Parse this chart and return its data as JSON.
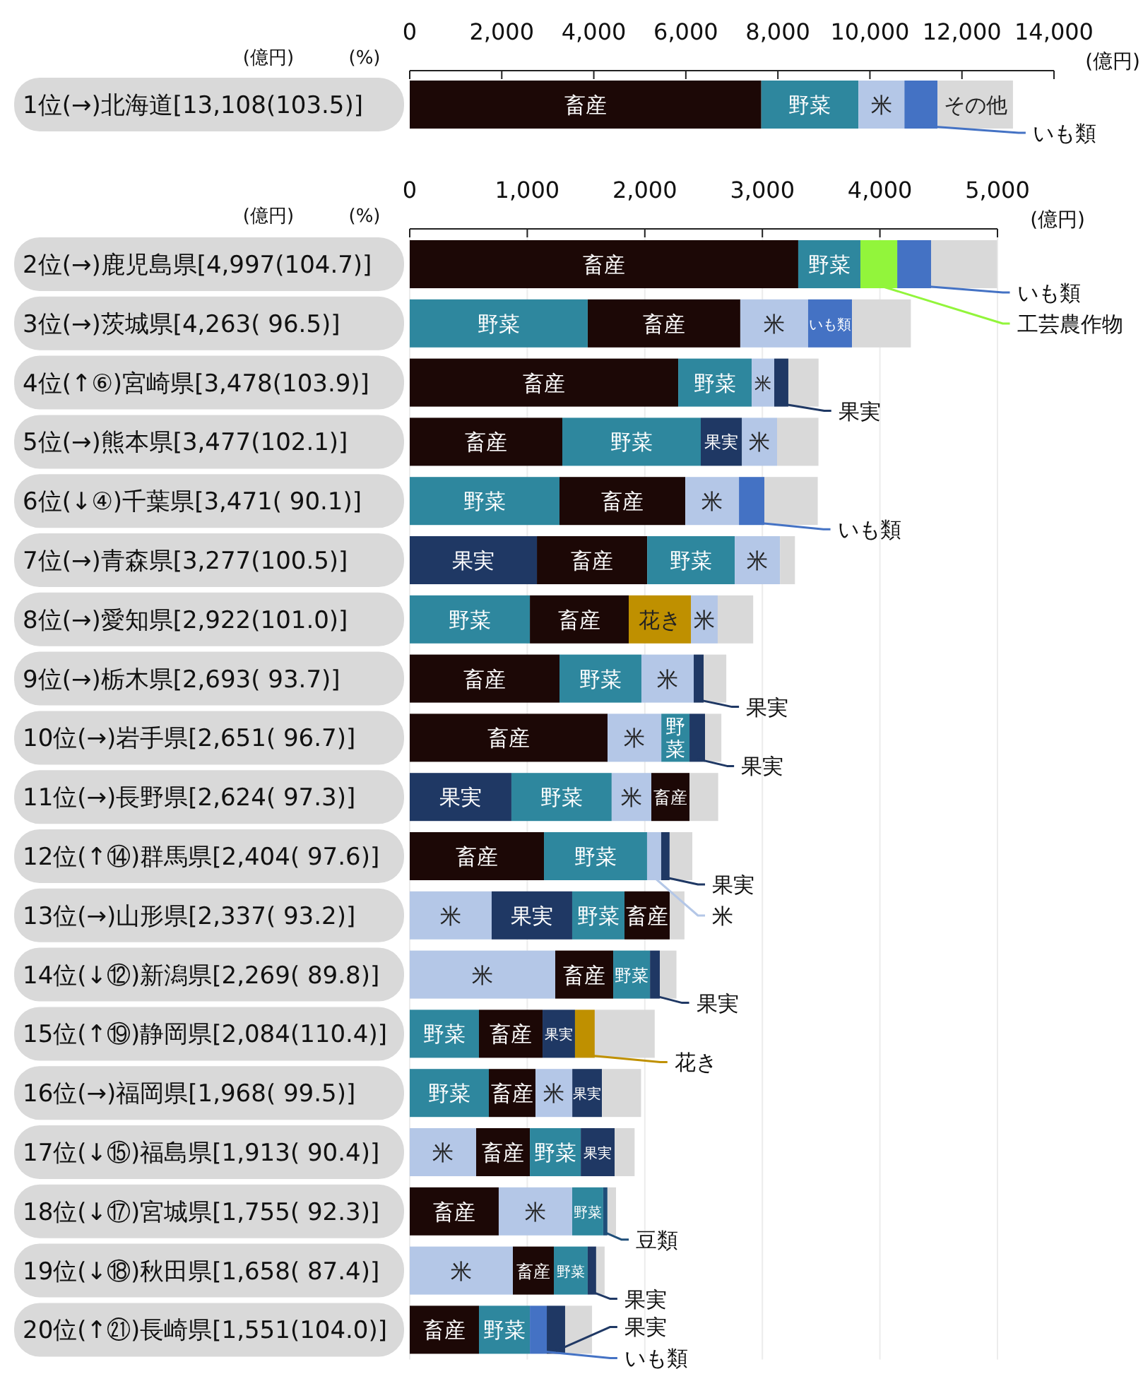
{
  "chart_data": [
    {
      "type": "bar",
      "orientation": "horizontal",
      "xlabel": "(億円)",
      "annotations": [
        "(億円)",
        "(%)"
      ],
      "grid": false,
      "legend": "right",
      "categories": [
        "1位(→)北海道[13,108(103.5)]"
      ],
      "xlim": [
        0,
        14000
      ],
      "xticks": [
        0,
        {
          "value": 2000,
          "label": "2,000"
        },
        {
          "value": 4000,
          "label": "4,000"
        },
        {
          "value": 6000,
          "label": "6,000"
        },
        {
          "value": 8000,
          "label": "8,000"
        },
        {
          "value": 10000,
          "label": "10,000"
        },
        {
          "value": 12000,
          "label": "12,000"
        },
        {
          "value": 14000,
          "label": "14,000"
        }
      ],
      "series": [
        {
          "name": "畜産",
          "color": "#1c0806",
          "values": [
            7640
          ],
          "base": [
            0
          ]
        },
        {
          "name": "野菜",
          "color": "#2e879e",
          "values": [
            2110
          ],
          "base": [
            7640
          ]
        },
        {
          "name": "米",
          "color": "#b4c7e7",
          "values": [
            1000
          ],
          "base": [
            9750
          ]
        },
        {
          "name": "いも類",
          "color": "#4472c4",
          "values": [
            720
          ],
          "base": [
            10750
          ]
        },
        {
          "name": "その他",
          "color": "#d9d9d9",
          "values": [
            1638
          ],
          "base": [
            11470
          ]
        }
      ]
    },
    {
      "type": "bar",
      "orientation": "horizontal",
      "xlabel": "(億円)",
      "annotations": [
        "(億円)",
        "(%)"
      ],
      "grid": "x",
      "legend": "right",
      "categories": [
        "2位(→)鹿児島県[4,997(104.7)]",
        "3位(→)茨城県[4,263( 96.5)]",
        "4位(↑⑥)宮崎県[3,478(103.9)]",
        "5位(→)熊本県[3,477(102.1)]",
        "6位(↓④)千葉県[3,471( 90.1)]",
        "7位(→)青森県[3,277(100.5)]",
        "8位(→)愛知県[2,922(101.0)]",
        "9位(→)栃木県[2,693( 93.7)]",
        "10位(→)岩手県[2,651( 96.7)]",
        "11位(→)長野県[2,624( 97.3)]",
        "12位(↑⑭)群馬県[2,404( 97.6)]",
        "13位(→)山形県[2,337( 93.2)]",
        "14位(↓⑫)新潟県[2,269( 89.8)]",
        "15位(↑⑲)静岡県[2,084(110.4)]",
        "16位(→)福岡県[1,968( 99.5)]",
        "17位(↓⑮)福島県[1,913( 90.4)]",
        "18位(↓⑰)宮城県[1,755( 92.3)]",
        "19位(↓⑱)秋田県[1,658( 87.4)]",
        "20位(↑㉑)長崎県[1,551(104.0)]"
      ],
      "xlim": [
        0,
        5000
      ],
      "xticks": [
        0,
        {
          "value": 1000,
          "label": "1,000"
        },
        {
          "value": 2000,
          "label": "2,000"
        },
        {
          "value": 3000,
          "label": "3,000"
        },
        {
          "value": 4000,
          "label": "4,000"
        },
        {
          "value": 5000,
          "label": "5,000"
        }
      ],
      "series": [
        {
          "name": "畜産",
          "color": "#1c0806",
          "values": [
            3305,
            1298,
            2284,
            1298,
            1070,
            938,
            841,
            1274,
            1683,
            325,
            1142,
            385,
            493,
            541,
            397,
            457,
            757,
            349,
            589
          ],
          "base": [
            0,
            1514,
            0,
            0,
            1274,
            1082,
            1022,
            0,
            0,
            2055,
            0,
            1827,
            1238,
            589,
            673,
            565,
            0,
            877,
            0
          ]
        },
        {
          "name": "野菜",
          "color": "#2e879e",
          "values": [
            529,
            1514,
            625,
            1178,
            1274,
            745,
            1022,
            697,
            240,
            853,
            877,
            445,
            313,
            589,
            673,
            433,
            264,
            288,
            433
          ],
          "base": [
            3305,
            0,
            2284,
            1298,
            0,
            2020,
            0,
            1274,
            2140,
            865,
            1142,
            1382,
            1731,
            0,
            0,
            1022,
            1382,
            1226,
            589
          ]
        },
        {
          "name": "米",
          "color": "#b4c7e7",
          "values": [
            null,
            577,
            192,
            300,
            457,
            385,
            228,
            445,
            457,
            337,
            120,
            697,
            1238,
            null,
            313,
            565,
            625,
            877,
            null
          ],
          "base": [
            null,
            2812,
            2909,
            2825,
            2344,
            2765,
            2392,
            1971,
            1683,
            1718,
            2019,
            0,
            0,
            null,
            1070,
            0,
            757,
            0,
            null
          ]
        },
        {
          "name": "果実",
          "color": "#1f3864",
          "values": [
            null,
            null,
            120,
            349,
            null,
            1082,
            null,
            84,
            132,
            865,
            72,
            685,
            84,
            276,
            252,
            288,
            null,
            72,
            156
          ],
          "base": [
            null,
            null,
            3101,
            2476,
            null,
            0,
            null,
            2416,
            2380,
            0,
            2139,
            697,
            2044,
            1130,
            1383,
            1455,
            null,
            1514,
            1166
          ]
        },
        {
          "name": "いも類",
          "color": "#4472c4",
          "values": [
            288,
            373,
            null,
            null,
            216,
            null,
            null,
            null,
            null,
            null,
            null,
            null,
            null,
            null,
            null,
            null,
            null,
            null,
            144
          ],
          "base": [
            4147,
            3389,
            null,
            null,
            2801,
            null,
            null,
            null,
            null,
            null,
            null,
            null,
            null,
            null,
            null,
            null,
            null,
            null,
            1022
          ]
        },
        {
          "name": "工芸農作物",
          "color": "#92f53b",
          "values": [
            313,
            null,
            null,
            null,
            null,
            null,
            null,
            null,
            null,
            null,
            null,
            null,
            null,
            null,
            null,
            null,
            null,
            null,
            null
          ],
          "base": [
            3834,
            null,
            null,
            null,
            null,
            null,
            null,
            null,
            null,
            null,
            null,
            null,
            null,
            null,
            null,
            null,
            null,
            null,
            null
          ]
        },
        {
          "name": "花き",
          "color": "#bf9000",
          "values": [
            null,
            null,
            null,
            null,
            null,
            null,
            529,
            null,
            null,
            null,
            null,
            null,
            null,
            168,
            null,
            null,
            null,
            null,
            null
          ],
          "base": [
            null,
            null,
            null,
            null,
            null,
            null,
            1863,
            null,
            null,
            null,
            null,
            null,
            null,
            1406,
            null,
            null,
            null,
            null,
            null
          ]
        },
        {
          "name": "豆類",
          "color": "#1f4e79",
          "values": [
            null,
            null,
            null,
            null,
            null,
            null,
            null,
            null,
            null,
            null,
            null,
            null,
            null,
            null,
            null,
            null,
            36,
            null,
            null
          ],
          "base": [
            null,
            null,
            null,
            null,
            null,
            null,
            null,
            null,
            null,
            null,
            null,
            null,
            null,
            null,
            null,
            null,
            1646,
            null,
            null
          ]
        },
        {
          "color": "#d9d9d9",
          "values": [
            562,
            501,
            257,
            352,
            454,
            127,
            302,
            193,
            139,
            244,
            193,
            125,
            141,
            510,
            333,
            170,
            73,
            72,
            229
          ],
          "base": [
            4435,
            3762,
            3221,
            3125,
            3017,
            3150,
            2620,
            2500,
            2512,
            2380,
            2211,
            2212,
            2128,
            1574,
            1635,
            1743,
            1682,
            1586,
            1322
          ]
        }
      ]
    }
  ]
}
